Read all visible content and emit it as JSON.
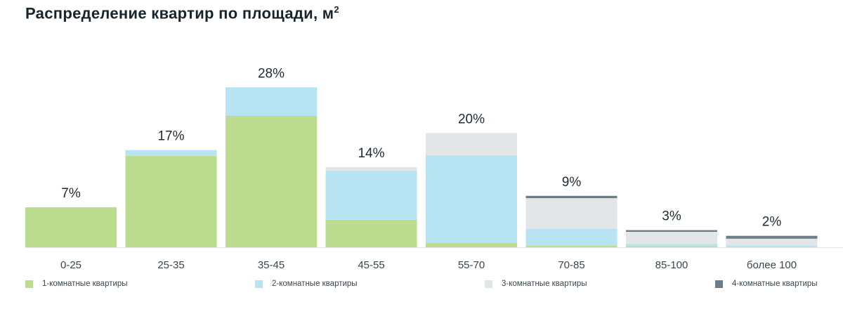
{
  "title": "Распределение квартир по площади, м",
  "title_sup": "2",
  "chart_data": {
    "type": "bar",
    "stacked": true,
    "categories": [
      "0-25",
      "25-35",
      "35-45",
      "45-55",
      "55-70",
      "70-85",
      "85-100",
      "более 100"
    ],
    "total_labels": [
      "7%",
      "17%",
      "28%",
      "14%",
      "20%",
      "9%",
      "3%",
      "2%"
    ],
    "totals": [
      7,
      17,
      28,
      14,
      20,
      9,
      3,
      2
    ],
    "ylim": [
      0,
      30
    ],
    "series": [
      {
        "name": "1-комнатные квартиры",
        "color": "#bcdd8f",
        "values": [
          7,
          16,
          23,
          4.8,
          0.8,
          0.3,
          0.2,
          0
        ]
      },
      {
        "name": "2-комнатные квартиры",
        "color": "#b8e3f2",
        "values": [
          0,
          1,
          5,
          8.6,
          15.3,
          2.9,
          0.4,
          0.3
        ]
      },
      {
        "name": "3-комнатные квартиры",
        "color": "#e3e6e7",
        "values": [
          0,
          0,
          0,
          0.6,
          3.9,
          5.4,
          2.1,
          1.2
        ]
      },
      {
        "name": "4-комнатные квартиры",
        "color": "#6c7d85",
        "values": [
          0,
          0,
          0,
          0,
          0,
          0.4,
          0.3,
          0.5
        ]
      }
    ]
  }
}
